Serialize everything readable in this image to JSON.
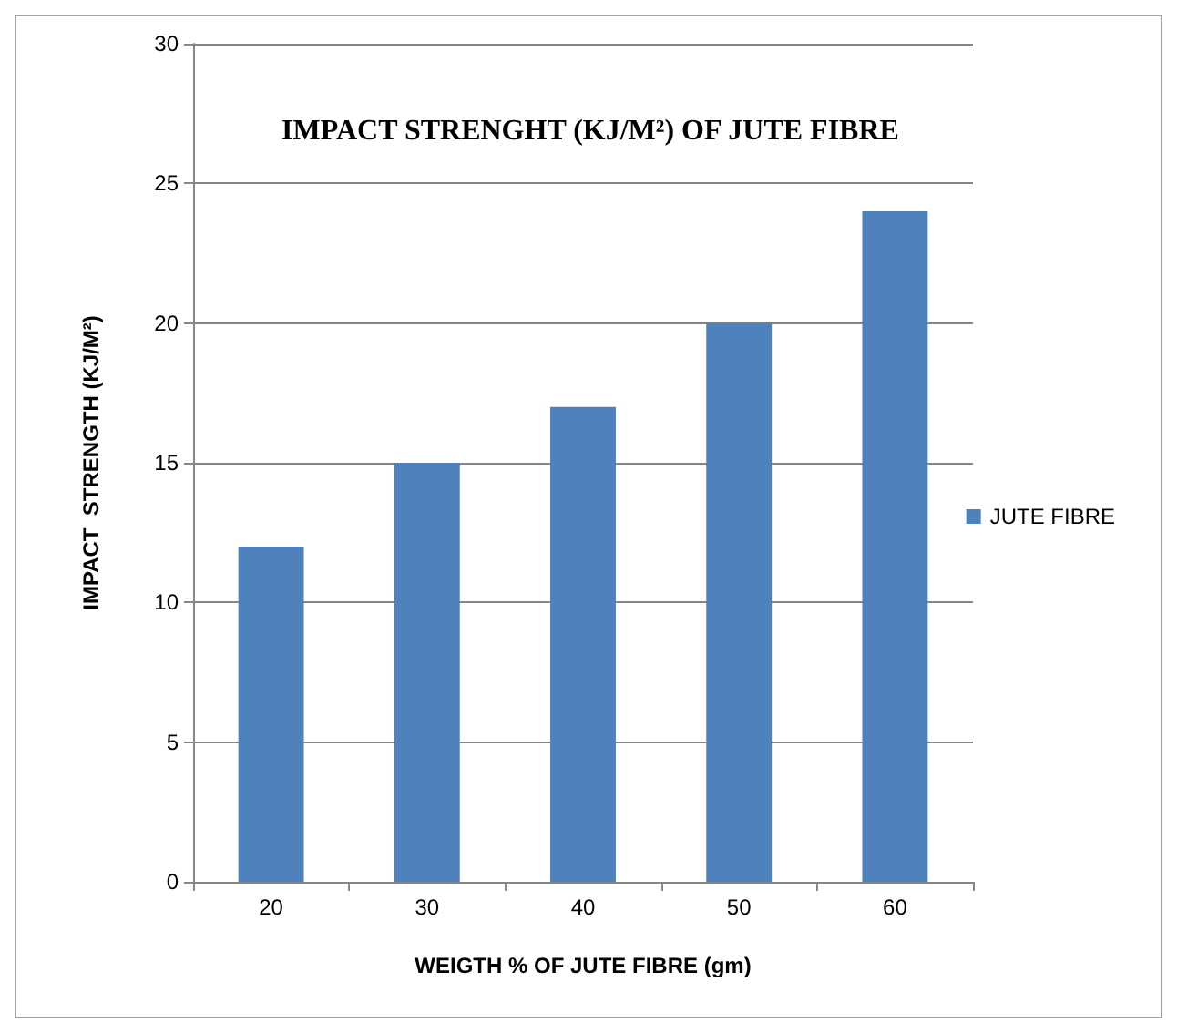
{
  "chart_data": {
    "type": "bar",
    "title": "IMPACT STRENGHT (KJ/M²) OF JUTE FIBRE",
    "xlabel": "WEIGTH % OF JUTE FIBRE (gm)",
    "ylabel": "IMPACT  STRENGTH (KJ/M²)",
    "categories": [
      "20",
      "30",
      "40",
      "50",
      "60"
    ],
    "series": [
      {
        "name": "JUTE FIBRE",
        "color": "#4f81bd",
        "values": [
          12,
          15,
          17,
          20,
          24
        ]
      }
    ],
    "ylim": [
      0,
      30
    ],
    "yticks": [
      0,
      5,
      10,
      15,
      20,
      25,
      30
    ],
    "grid": "y",
    "legend": "right"
  }
}
